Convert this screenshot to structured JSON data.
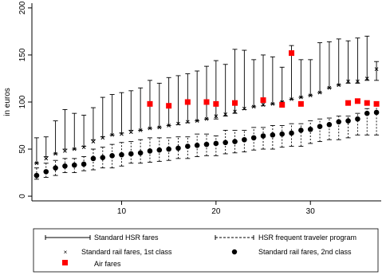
{
  "chart_data": {
    "type": "scatter",
    "title": "",
    "xlabel": "",
    "ylabel": "in euros",
    "xlim": [
      0.5,
      37.5
    ],
    "ylim": [
      -5,
      205
    ],
    "xticks": [
      10,
      20,
      30
    ],
    "yticks": [
      0,
      50,
      100,
      150,
      200
    ],
    "grid": false,
    "legend_position": "bottom",
    "x": [
      1,
      2,
      3,
      4,
      5,
      6,
      7,
      8,
      9,
      10,
      11,
      12,
      13,
      14,
      15,
      16,
      17,
      18,
      19,
      20,
      21,
      22,
      23,
      24,
      25,
      26,
      27,
      28,
      29,
      30,
      31,
      32,
      33,
      34,
      35,
      36,
      37
    ],
    "series": [
      {
        "name": "Standard HSR fares",
        "style": "solid-range",
        "low": [
          35,
          42,
          45,
          50,
          50,
          53,
          60,
          63,
          65,
          67,
          70,
          70,
          72,
          73,
          75,
          76,
          78,
          80,
          82,
          82,
          85,
          88,
          92,
          95,
          96,
          98,
          100,
          103,
          105,
          107,
          110,
          115,
          118,
          120,
          120,
          123,
          123
        ],
        "high": [
          62,
          63,
          80,
          92,
          88,
          86,
          94,
          105,
          108,
          110,
          112,
          115,
          123,
          120,
          126,
          128,
          130,
          133,
          138,
          144,
          140,
          156,
          155,
          145,
          150,
          148,
          137,
          160,
          145,
          145,
          163,
          164,
          167,
          165,
          168,
          170,
          143
        ]
      },
      {
        "name": "HSR frequent traveler program",
        "style": "dashed-range",
        "low": [
          18,
          20,
          22,
          25,
          25,
          27,
          28,
          30,
          30,
          32,
          35,
          35,
          36,
          37,
          38,
          40,
          40,
          42,
          43,
          43,
          45,
          46,
          47,
          49,
          50,
          50,
          52,
          53,
          53,
          56,
          58,
          60,
          60,
          62,
          65,
          65,
          65
        ],
        "high": [
          30,
          35,
          38,
          40,
          40,
          42,
          50,
          52,
          55,
          57,
          58,
          60,
          62,
          62,
          62,
          63,
          63,
          66,
          66,
          64,
          70,
          70,
          70,
          73,
          73,
          75,
          75,
          77,
          77,
          80,
          82,
          83,
          85,
          85,
          88,
          93,
          97
        ]
      },
      {
        "name": "Standard rail fares, 1st class",
        "marker": "x",
        "values": [
          35,
          40,
          45,
          48,
          50,
          52,
          58,
          62,
          65,
          66,
          68,
          70,
          72,
          73,
          75,
          77,
          79,
          80,
          82,
          85,
          87,
          90,
          93,
          95,
          97,
          98,
          100,
          103,
          105,
          107,
          110,
          115,
          118,
          122,
          122,
          125,
          135
        ]
      },
      {
        "name": "Standard rail fares, 2nd class",
        "marker": "dot",
        "values": [
          22,
          26,
          30,
          32,
          33,
          34,
          40,
          41,
          43,
          44,
          45,
          46,
          48,
          49,
          50,
          51,
          53,
          54,
          55,
          56,
          57,
          58,
          60,
          62,
          64,
          65,
          66,
          67,
          70,
          71,
          74,
          76,
          79,
          80,
          82,
          88,
          89
        ]
      },
      {
        "name": "Air fares",
        "marker": "square",
        "points": [
          [
            13,
            98
          ],
          [
            15,
            96
          ],
          [
            17,
            100
          ],
          [
            19,
            100
          ],
          [
            20,
            98
          ],
          [
            22,
            99
          ],
          [
            25,
            102
          ],
          [
            27,
            97
          ],
          [
            28,
            152
          ],
          [
            29,
            98
          ],
          [
            34,
            99
          ],
          [
            35,
            101
          ],
          [
            36,
            99
          ],
          [
            37,
            98
          ]
        ]
      }
    ],
    "colors": {
      "air_marker": "#ff0000",
      "marker": "#000000",
      "axis": "#000000"
    }
  }
}
